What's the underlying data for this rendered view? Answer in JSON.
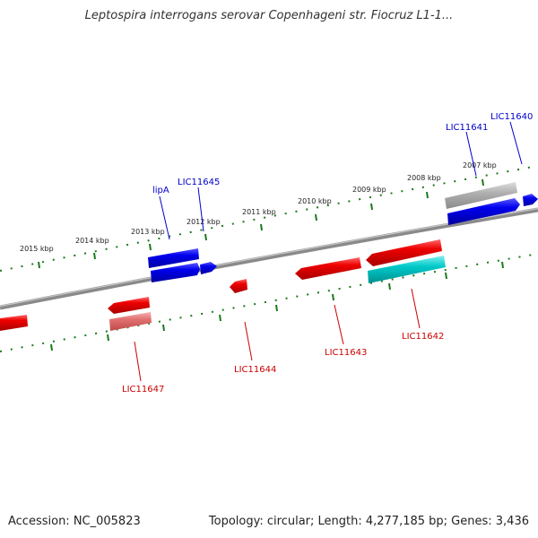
{
  "title": "Leptospira interrogans serovar Copenhageni str. Fiocruz L1-1...",
  "footer": {
    "accession": "Accession: NC_005823",
    "summary": "Topology: circular; Length: 4,277,185 bp; Genes: 3,436"
  },
  "colors": {
    "forward": "#0000ee",
    "reverse": "#ee0000",
    "grey": "#a0a0a0",
    "cyan": "#00c8c8",
    "ticks": "#1a7a1a",
    "backbone": "#7a7a7a"
  },
  "ruler_labels": [
    "2015 kbp",
    "2014 kbp",
    "2013 kbp",
    "2012 kbp",
    "2011 kbp",
    "2010 kbp",
    "2009 kbp",
    "2008 kbp",
    "2007 kbp"
  ],
  "gene_labels": {
    "top": [
      "lipA",
      "LIC11645",
      "LIC11641",
      "LIC11640"
    ],
    "bottom": [
      "LIC11647",
      "LIC11644",
      "LIC11643",
      "LIC11642"
    ]
  }
}
